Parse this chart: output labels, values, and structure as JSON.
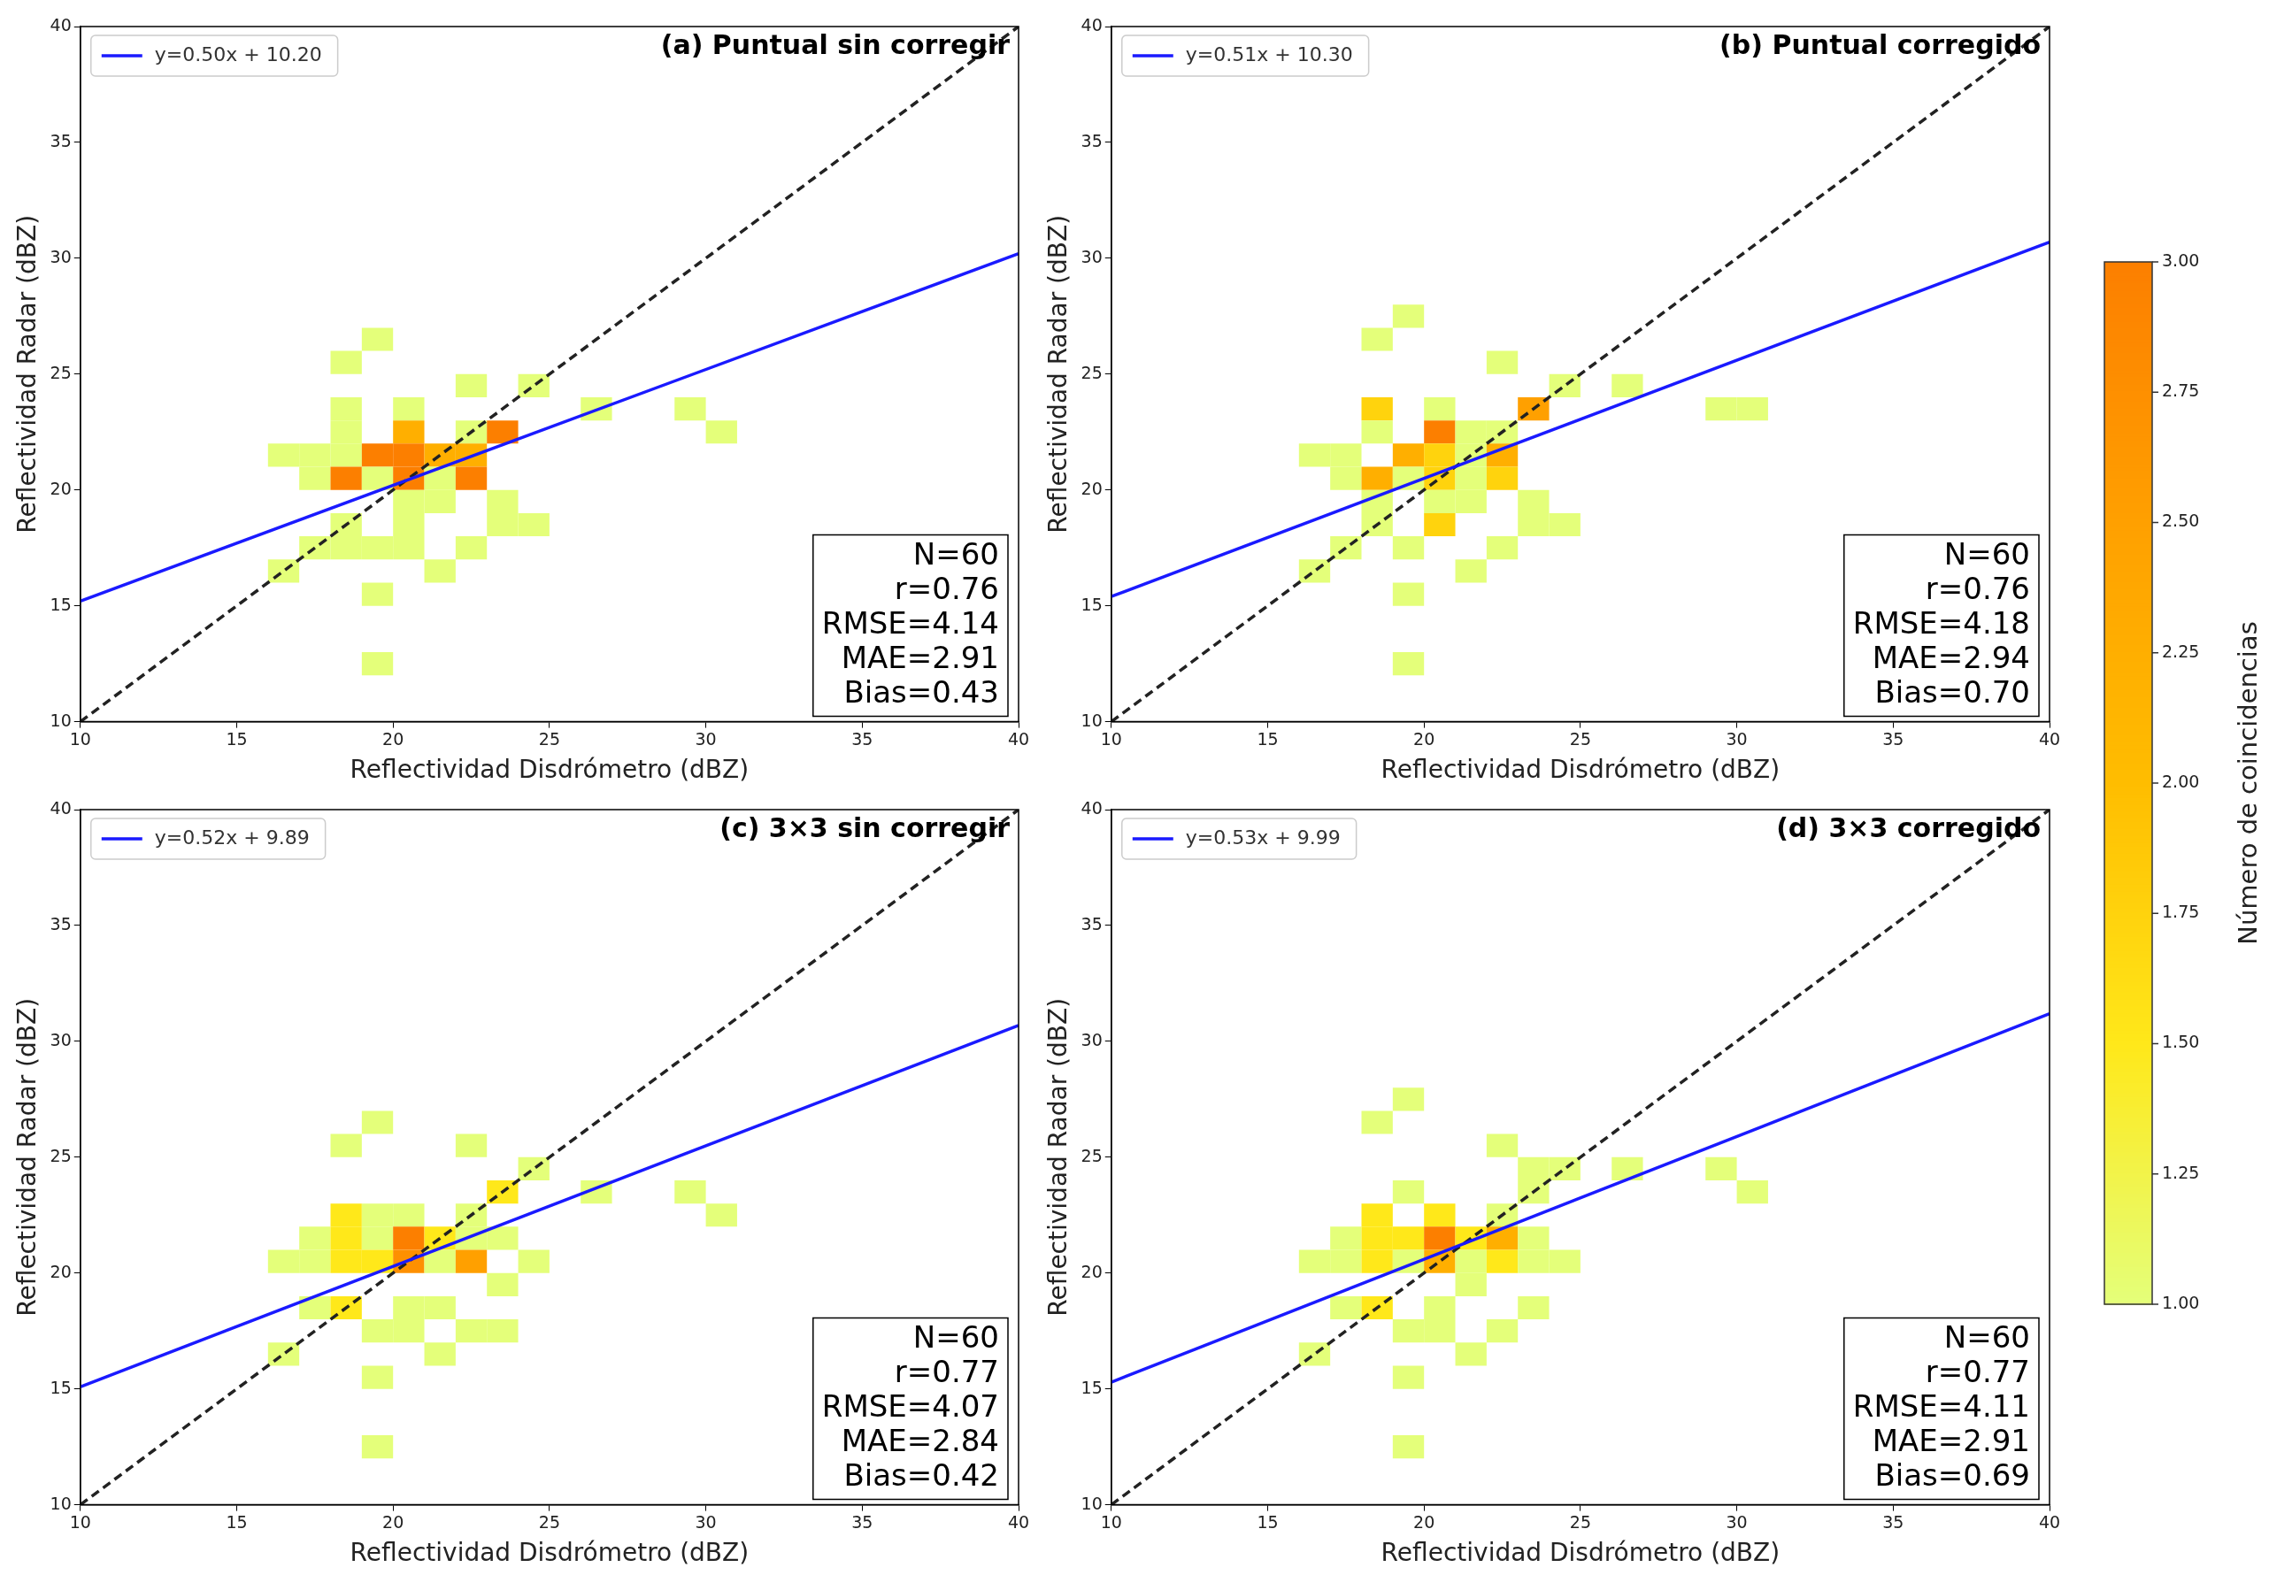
{
  "chart_data": [
    {
      "type": "scatter",
      "title": "(a) Puntual sin corregir",
      "xlabel": "Reflectividad Disdrómetro (dBZ)",
      "ylabel": "Reflectividad Radar (dBZ)",
      "xlim": [
        10,
        40
      ],
      "ylim": [
        10,
        40
      ],
      "xticks": [
        10,
        15,
        20,
        25,
        30,
        35,
        40
      ],
      "yticks": [
        10,
        15,
        20,
        25,
        30,
        35,
        40
      ],
      "legend": "top left",
      "clabel": "Número de coincidencias",
      "clim": [
        1,
        3
      ],
      "cticks": [
        {
          "value": 1,
          "label": "1.00"
        },
        {
          "value": 1.25,
          "label": "1.25"
        },
        {
          "value": 1.5,
          "label": "1.50"
        },
        {
          "value": 1.75,
          "label": "1.75"
        },
        {
          "value": 2,
          "label": "2.00"
        },
        {
          "value": 2.25,
          "label": "2.25"
        },
        {
          "value": 2.5,
          "label": "2.50"
        },
        {
          "value": 2.75,
          "label": "2.75"
        },
        {
          "value": 3,
          "label": "3.00"
        }
      ],
      "annotations": [
        "N=60",
        "r=0.76",
        "RMSE=4.14",
        "MAE=2.91",
        "Bias=0.43"
      ],
      "series": [
        {
          "type": "scatter",
          "marker": "square",
          "x": [
            19.5,
            18.5,
            22.5,
            24.5,
            18.5,
            20.5,
            26.5,
            29.5,
            18.5,
            20.5,
            22.5,
            23.5,
            30.5,
            16.5,
            17.5,
            18.5,
            19.5,
            20.5,
            21.5,
            22.5,
            17.5,
            18.5,
            19.5,
            20.5,
            21.5,
            22.5,
            20.5,
            21.5,
            23.5,
            18.5,
            20.5,
            23.5,
            24.5,
            17.5,
            18.5,
            19.5,
            20.5,
            22.5,
            16.5,
            21.5,
            19.5,
            19.5
          ],
          "values": [
            26.5,
            25.5,
            24.5,
            24.5,
            23.5,
            23.5,
            23.5,
            23.5,
            22.5,
            22.5,
            22.5,
            22.5,
            22.5,
            21.5,
            21.5,
            21.5,
            21.5,
            21.5,
            21.5,
            21.5,
            20.5,
            20.5,
            20.5,
            20.5,
            20.5,
            20.5,
            19.5,
            19.5,
            19.5,
            18.5,
            18.5,
            18.5,
            18.5,
            17.5,
            17.5,
            17.5,
            17.5,
            17.5,
            16.5,
            16.5,
            15.5,
            12.5
          ],
          "colors": [
            "#e4ff7a",
            "#e4ff7a",
            "#e4ff7a",
            "#e4ff7a",
            "#e4ff7a",
            "#e4ff7a",
            "#e4ff7a",
            "#e4ff7a",
            "#e4ff7a",
            "#ffaf00",
            "#e4ff7a",
            "#fc7f00",
            "#e4ff7a",
            "#e4ff7a",
            "#e4ff7a",
            "#e4ff7a",
            "#fc7f00",
            "#fc7f00",
            "#ffaf00",
            "#ffaf00",
            "#e4ff7a",
            "#fc7f00",
            "#e4ff7a",
            "#fc7f00",
            "#e4ff7a",
            "#fc7f00",
            "#e4ff7a",
            "#e4ff7a",
            "#e4ff7a",
            "#e4ff7a",
            "#e4ff7a",
            "#e4ff7a",
            "#e4ff7a",
            "#e4ff7a",
            "#e4ff7a",
            "#e4ff7a",
            "#e4ff7a",
            "#e4ff7a",
            "#e4ff7a",
            "#e4ff7a",
            "#e4ff7a",
            "#e4ff7a"
          ]
        },
        {
          "type": "line",
          "name": "y=0.50x + 10.20",
          "color": "#1a1aff",
          "x": [
            10,
            40
          ],
          "values": [
            15.2,
            30.2
          ]
        },
        {
          "type": "line",
          "line_style": "dashed",
          "color": "#222222",
          "x": [
            10,
            40
          ],
          "values": [
            10,
            40
          ]
        }
      ]
    },
    {
      "type": "scatter",
      "title": "(b) Puntual corregido",
      "xlabel": "Reflectividad Disdrómetro (dBZ)",
      "ylabel": "Reflectividad Radar (dBZ)",
      "xlim": [
        10,
        40
      ],
      "ylim": [
        10,
        40
      ],
      "xticks": [
        10,
        15,
        20,
        25,
        30,
        35,
        40
      ],
      "yticks": [
        10,
        15,
        20,
        25,
        30,
        35,
        40
      ],
      "legend": "top left",
      "annotations": [
        "N=60",
        "r=0.76",
        "RMSE=4.18",
        "MAE=2.94",
        "Bias=0.70"
      ],
      "series": [
        {
          "type": "scatter",
          "marker": "square",
          "x": [
            19.5,
            18.5,
            22.5,
            24.5,
            26.5,
            18.5,
            20.5,
            23.5,
            29.5,
            30.5,
            18.5,
            20.5,
            21.5,
            22.5,
            16.5,
            17.5,
            19.5,
            20.5,
            21.5,
            22.5,
            17.5,
            18.5,
            19.5,
            20.5,
            21.5,
            22.5,
            18.5,
            20.5,
            21.5,
            23.5,
            18.5,
            20.5,
            23.5,
            24.5,
            17.5,
            19.5,
            22.5,
            16.5,
            21.5,
            19.5,
            19.5
          ],
          "values": [
            27.5,
            26.5,
            25.5,
            24.5,
            24.5,
            23.5,
            23.5,
            23.5,
            23.5,
            23.5,
            22.5,
            22.5,
            22.5,
            22.5,
            21.5,
            21.5,
            21.5,
            21.5,
            21.5,
            21.5,
            20.5,
            20.5,
            20.5,
            20.5,
            20.5,
            20.5,
            19.5,
            19.5,
            19.5,
            19.5,
            18.5,
            18.5,
            18.5,
            18.5,
            17.5,
            17.5,
            17.5,
            16.5,
            16.5,
            15.5,
            12.5
          ],
          "colors": [
            "#e4ff7a",
            "#e4ff7a",
            "#e4ff7a",
            "#e4ff7a",
            "#e4ff7a",
            "#ffd30d",
            "#e4ff7a",
            "#ffa000",
            "#e4ff7a",
            "#e4ff7a",
            "#e4ff7a",
            "#fc7f00",
            "#e4ff7a",
            "#e4ff7a",
            "#e4ff7a",
            "#e4ff7a",
            "#ffaf00",
            "#ffd30d",
            "#e4ff7a",
            "#ffaf00",
            "#e4ff7a",
            "#ffaf00",
            "#e4ff7a",
            "#ffd30d",
            "#e4ff7a",
            "#ffd30d",
            "#e4ff7a",
            "#e4ff7a",
            "#e4ff7a",
            "#e4ff7a",
            "#e4ff7a",
            "#ffd30d",
            "#e4ff7a",
            "#e4ff7a",
            "#e4ff7a",
            "#e4ff7a",
            "#e4ff7a",
            "#e4ff7a",
            "#e4ff7a",
            "#e4ff7a",
            "#e4ff7a"
          ]
        },
        {
          "type": "line",
          "name": "y=0.51x + 10.30",
          "color": "#1a1aff",
          "x": [
            10,
            40
          ],
          "values": [
            15.4,
            30.7
          ]
        },
        {
          "type": "line",
          "line_style": "dashed",
          "color": "#222222",
          "x": [
            10,
            40
          ],
          "values": [
            10,
            40
          ]
        }
      ]
    },
    {
      "type": "scatter",
      "title": "(c) 3×3 sin corregir",
      "xlabel": "Reflectividad Disdrómetro (dBZ)",
      "ylabel": "Reflectividad Radar (dBZ)",
      "xlim": [
        10,
        40
      ],
      "ylim": [
        10,
        40
      ],
      "xticks": [
        10,
        15,
        20,
        25,
        30,
        35,
        40
      ],
      "yticks": [
        10,
        15,
        20,
        25,
        30,
        35,
        40
      ],
      "legend": "top left",
      "annotations": [
        "N=60",
        "r=0.77",
        "RMSE=4.07",
        "MAE=2.84",
        "Bias=0.42"
      ],
      "series": [
        {
          "type": "scatter",
          "marker": "square",
          "x": [
            19.5,
            18.5,
            22.5,
            24.5,
            23.5,
            26.5,
            29.5,
            18.5,
            19.5,
            20.5,
            22.5,
            30.5,
            17.5,
            18.5,
            19.5,
            20.5,
            21.5,
            22.5,
            23.5,
            16.5,
            17.5,
            18.5,
            19.5,
            20.5,
            21.5,
            22.5,
            24.5,
            23.5,
            17.5,
            18.5,
            20.5,
            21.5,
            19.5,
            20.5,
            22.5,
            23.5,
            16.5,
            21.5,
            19.5,
            19.5
          ],
          "values": [
            26.5,
            25.5,
            25.5,
            24.5,
            23.5,
            23.5,
            23.5,
            22.5,
            22.5,
            22.5,
            22.5,
            22.5,
            21.5,
            21.5,
            21.5,
            21.5,
            21.5,
            21.5,
            21.5,
            20.5,
            20.5,
            20.5,
            20.5,
            20.5,
            20.5,
            20.5,
            20.5,
            19.5,
            18.5,
            18.5,
            18.5,
            18.5,
            17.5,
            17.5,
            17.5,
            17.5,
            16.5,
            16.5,
            15.5,
            12.5
          ],
          "colors": [
            "#e4ff7a",
            "#e4ff7a",
            "#e4ff7a",
            "#e4ff7a",
            "#ffe81a",
            "#e4ff7a",
            "#e4ff7a",
            "#ffe81a",
            "#e4ff7a",
            "#e4ff7a",
            "#e4ff7a",
            "#e4ff7a",
            "#e4ff7a",
            "#ffe81a",
            "#e4ff7a",
            "#fc7f00",
            "#ffe81a",
            "#e4ff7a",
            "#e4ff7a",
            "#e4ff7a",
            "#e4ff7a",
            "#ffe81a",
            "#ffe81a",
            "#fe9000",
            "#e4ff7a",
            "#ffa000",
            "#e4ff7a",
            "#e4ff7a",
            "#e4ff7a",
            "#ffe81a",
            "#e4ff7a",
            "#e4ff7a",
            "#e4ff7a",
            "#e4ff7a",
            "#e4ff7a",
            "#e4ff7a",
            "#e4ff7a",
            "#e4ff7a",
            "#e4ff7a",
            "#e4ff7a"
          ]
        },
        {
          "type": "line",
          "name": "y=0.52x + 9.89",
          "color": "#1a1aff",
          "x": [
            10,
            40
          ],
          "values": [
            15.09,
            30.69
          ]
        },
        {
          "type": "line",
          "line_style": "dashed",
          "color": "#222222",
          "x": [
            10,
            40
          ],
          "values": [
            10,
            40
          ]
        }
      ]
    },
    {
      "type": "scatter",
      "title": "(d) 3×3 corregido",
      "xlabel": "Reflectividad Disdrómetro (dBZ)",
      "ylabel": "Reflectividad Radar (dBZ)",
      "xlim": [
        10,
        40
      ],
      "ylim": [
        10,
        40
      ],
      "xticks": [
        10,
        15,
        20,
        25,
        30,
        35,
        40
      ],
      "yticks": [
        10,
        15,
        20,
        25,
        30,
        35,
        40
      ],
      "legend": "top left",
      "annotations": [
        "N=60",
        "r=0.77",
        "RMSE=4.11",
        "MAE=2.91",
        "Bias=0.69"
      ],
      "series": [
        {
          "type": "scatter",
          "marker": "square",
          "x": [
            19.5,
            18.5,
            22.5,
            23.5,
            24.5,
            26.5,
            29.5,
            19.5,
            23.5,
            30.5,
            18.5,
            20.5,
            22.5,
            17.5,
            18.5,
            19.5,
            20.5,
            21.5,
            22.5,
            23.5,
            16.5,
            17.5,
            18.5,
            19.5,
            20.5,
            21.5,
            22.5,
            23.5,
            24.5,
            21.5,
            17.5,
            18.5,
            20.5,
            23.5,
            19.5,
            20.5,
            22.5,
            16.5,
            21.5,
            19.5,
            19.5
          ],
          "values": [
            27.5,
            26.5,
            25.5,
            24.5,
            24.5,
            24.5,
            24.5,
            23.5,
            23.5,
            23.5,
            22.5,
            22.5,
            22.5,
            21.5,
            21.5,
            21.5,
            21.5,
            21.5,
            21.5,
            21.5,
            20.5,
            20.5,
            20.5,
            20.5,
            20.5,
            20.5,
            20.5,
            20.5,
            20.5,
            19.5,
            18.5,
            18.5,
            18.5,
            18.5,
            17.5,
            17.5,
            17.5,
            16.5,
            16.5,
            15.5,
            12.5
          ],
          "colors": [
            "#e4ff7a",
            "#e4ff7a",
            "#e4ff7a",
            "#e4ff7a",
            "#e4ff7a",
            "#e4ff7a",
            "#e4ff7a",
            "#e4ff7a",
            "#e4ff7a",
            "#e4ff7a",
            "#ffe81a",
            "#ffe81a",
            "#e4ff7a",
            "#e4ff7a",
            "#ffe81a",
            "#ffe81a",
            "#fc7f00",
            "#ffe81a",
            "#ffaf00",
            "#e4ff7a",
            "#e4ff7a",
            "#e4ff7a",
            "#ffe81a",
            "#e4ff7a",
            "#ffaf00",
            "#e4ff7a",
            "#ffe81a",
            "#e4ff7a",
            "#e4ff7a",
            "#e4ff7a",
            "#e4ff7a",
            "#ffe81a",
            "#e4ff7a",
            "#e4ff7a",
            "#e4ff7a",
            "#e4ff7a",
            "#e4ff7a",
            "#e4ff7a",
            "#e4ff7a",
            "#e4ff7a",
            "#e4ff7a"
          ]
        },
        {
          "type": "line",
          "name": "y=0.53x + 9.99",
          "color": "#1a1aff",
          "x": [
            10,
            40
          ],
          "values": [
            15.29,
            31.19
          ]
        },
        {
          "type": "line",
          "line_style": "dashed",
          "color": "#222222",
          "x": [
            10,
            40
          ],
          "values": [
            10,
            40
          ]
        }
      ]
    }
  ]
}
